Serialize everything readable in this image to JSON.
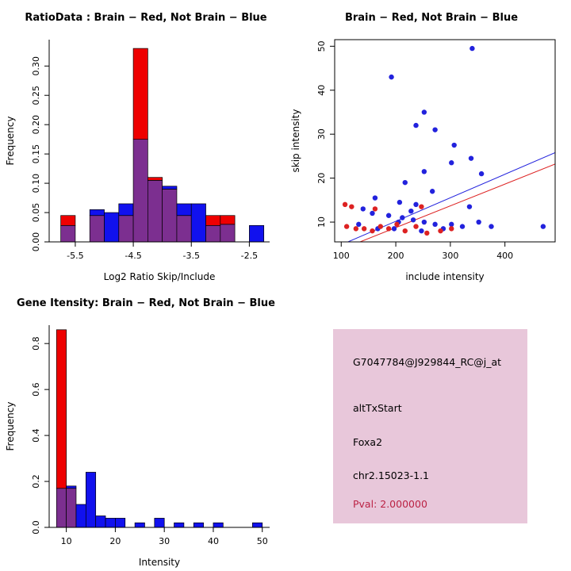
{
  "figure": {
    "background": "#ffffff"
  },
  "chart_data": [
    {
      "type": "bar",
      "chart_kind": "overlaid-histogram",
      "title": "RatioData : Brain − Red, Not Brain − Blue",
      "xlabel": "Log2 Ratio Skip/Include",
      "ylabel": "Frequency",
      "xlim": [
        -5.95,
        -2.15
      ],
      "ylim": [
        0,
        0.345
      ],
      "xticks": [
        -5.5,
        -4.5,
        -3.5,
        -2.5
      ],
      "xtick_labels": [
        "-5.5",
        "-4.5",
        "-3.5",
        "-2.5"
      ],
      "yticks": [
        0,
        0.05,
        0.1,
        0.15,
        0.2,
        0.25,
        0.3
      ],
      "ytick_labels": [
        "0.00",
        "0.05",
        "0.10",
        "0.15",
        "0.20",
        "0.25",
        "0.30"
      ],
      "bin_start": -5.75,
      "bin_width": 0.25,
      "overlap_color": "#7C2F90",
      "grid": false,
      "legend": "none",
      "series": [
        {
          "name": "Brain (red)",
          "color": "#EE0000",
          "values": [
            0.045,
            0,
            0.045,
            0,
            0.045,
            0.33,
            0.11,
            0.09,
            0.045,
            0,
            0.045,
            0.045,
            0,
            0
          ]
        },
        {
          "name": "Not Brain (blue)",
          "color": "#1111EE",
          "values": [
            0.028,
            0,
            0.055,
            0.05,
            0.065,
            0.175,
            0.105,
            0.095,
            0.065,
            0.065,
            0.028,
            0.03,
            0,
            0.028
          ]
        }
      ]
    },
    {
      "type": "scatter",
      "title": "Brain − Red, Not Brain − Blue",
      "xlabel": "include intensity",
      "ylabel": "skip intensity",
      "xlim": [
        88,
        492
      ],
      "ylim": [
        5.5,
        51.5
      ],
      "xticks": [
        100,
        200,
        300,
        400
      ],
      "xtick_labels": [
        "100",
        "200",
        "300",
        "400"
      ],
      "yticks": [
        10,
        20,
        30,
        40,
        50
      ],
      "ytick_labels": [
        "10",
        "20",
        "30",
        "40",
        "50"
      ],
      "grid": false,
      "legend": "none",
      "series": [
        {
          "name": "Not Brain (blue)",
          "color": "#2222DD",
          "line": [
            [
              88,
              4.2
            ],
            [
              492,
              25.8
            ]
          ],
          "points": [
            [
              340,
              49.5
            ],
            [
              192,
              43
            ],
            [
              252,
              35
            ],
            [
              237,
              32
            ],
            [
              272,
              31
            ],
            [
              307,
              27.5
            ],
            [
              338,
              24.5
            ],
            [
              302,
              23.5
            ],
            [
              252,
              21.5
            ],
            [
              357,
              21
            ],
            [
              217,
              19
            ],
            [
              267,
              17
            ],
            [
              162,
              15.5
            ],
            [
              207,
              14.5
            ],
            [
              237,
              14
            ],
            [
              335,
              13.5
            ],
            [
              140,
              13
            ],
            [
              157,
              12
            ],
            [
              187,
              11.5
            ],
            [
              212,
              11
            ],
            [
              228,
              12.5
            ],
            [
              232,
              10.5
            ],
            [
              252,
              10
            ],
            [
              272,
              9.5
            ],
            [
              302,
              9.5
            ],
            [
              322,
              9
            ],
            [
              352,
              10
            ],
            [
              375,
              9
            ],
            [
              470,
              9
            ],
            [
              132,
              9.5
            ],
            [
              167,
              8.5
            ],
            [
              197,
              8.5
            ],
            [
              247,
              8
            ],
            [
              287,
              8.5
            ],
            [
              205,
              10
            ]
          ]
        },
        {
          "name": "Brain (red)",
          "color": "#DD2222",
          "line": [
            [
              88,
              3.2
            ],
            [
              492,
              23.2
            ]
          ],
          "points": [
            [
              107,
              14
            ],
            [
              119,
              13.5
            ],
            [
              110,
              9
            ],
            [
              127,
              8.5
            ],
            [
              142,
              8.5
            ],
            [
              157,
              8
            ],
            [
              172,
              9
            ],
            [
              187,
              8.5
            ],
            [
              202,
              9.5
            ],
            [
              217,
              8
            ],
            [
              237,
              9
            ],
            [
              257,
              7.5
            ],
            [
              282,
              8
            ],
            [
              302,
              8.5
            ],
            [
              247,
              13.5
            ],
            [
              162,
              13
            ]
          ]
        }
      ]
    },
    {
      "type": "bar",
      "chart_kind": "overlaid-histogram",
      "title": "Gene Itensity: Brain − Red, Not Brain − Blue",
      "xlabel": "Intensity",
      "ylabel": "Frequency",
      "xlim": [
        6.5,
        51.5
      ],
      "ylim": [
        0,
        0.88
      ],
      "xticks": [
        10,
        20,
        30,
        40,
        50
      ],
      "xtick_labels": [
        "10",
        "20",
        "30",
        "40",
        "50"
      ],
      "yticks": [
        0,
        0.2,
        0.4,
        0.6,
        0.8
      ],
      "ytick_labels": [
        "0.0",
        "0.2",
        "0.4",
        "0.6",
        "0.8"
      ],
      "bin_start": 8,
      "bin_width": 2,
      "overlap_color": "#7C2F90",
      "grid": false,
      "legend": "none",
      "series": [
        {
          "name": "Brain (red)",
          "color": "#EE0000",
          "values": [
            0.86,
            0.17,
            0,
            0,
            0,
            0,
            0,
            0,
            0,
            0,
            0,
            0,
            0,
            0,
            0,
            0,
            0,
            0,
            0,
            0,
            0
          ]
        },
        {
          "name": "Not Brain (blue)",
          "color": "#1111EE",
          "values": [
            0.17,
            0.18,
            0.1,
            0.24,
            0.05,
            0.04,
            0.04,
            0,
            0.02,
            0,
            0.04,
            0,
            0.02,
            0,
            0.02,
            0,
            0.02,
            0,
            0,
            0,
            0.02
          ]
        }
      ]
    }
  ],
  "info_panel": {
    "background": "#E8C7DA",
    "lines": [
      {
        "text": "G7047784@J929844_RC@j_at",
        "color": "#000000"
      },
      {
        "text": "altTxStart",
        "color": "#000000"
      },
      {
        "text": "Foxa2",
        "color": "#000000"
      },
      {
        "text": "chr2.15023-1.1",
        "color": "#000000"
      },
      {
        "text": "Pval: 2.000000",
        "color": "#BB2244"
      }
    ]
  }
}
